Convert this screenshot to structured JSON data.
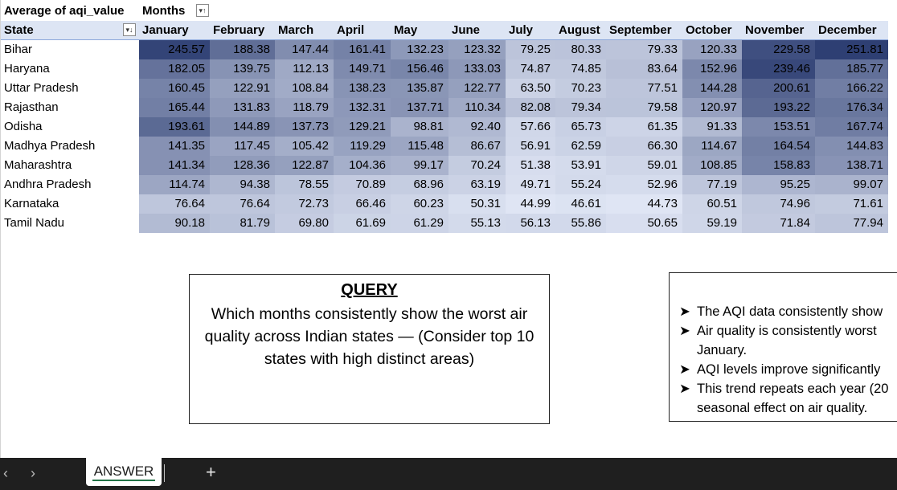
{
  "pivot": {
    "value_label": "Average of aqi_value",
    "columns_label": "Months",
    "rows_label": "State",
    "months": [
      "January",
      "February",
      "March",
      "April",
      "May",
      "June",
      "July",
      "August",
      "September",
      "October",
      "November",
      "December"
    ],
    "rows": [
      {
        "state": "Bihar",
        "values": [
          "245.57",
          "188.38",
          "147.44",
          "161.41",
          "132.23",
          "123.32",
          "79.25",
          "80.33",
          "79.33",
          "120.33",
          "229.58",
          "251.81"
        ]
      },
      {
        "state": "Haryana",
        "values": [
          "182.05",
          "139.75",
          "112.13",
          "149.71",
          "156.46",
          "133.03",
          "74.87",
          "74.85",
          "83.64",
          "152.96",
          "239.46",
          "185.77"
        ]
      },
      {
        "state": "Uttar Pradesh",
        "values": [
          "160.45",
          "122.91",
          "108.84",
          "138.23",
          "135.87",
          "122.77",
          "63.50",
          "70.23",
          "77.51",
          "144.28",
          "200.61",
          "166.22"
        ]
      },
      {
        "state": "Rajasthan",
        "values": [
          "165.44",
          "131.83",
          "118.79",
          "132.31",
          "137.71",
          "110.34",
          "82.08",
          "79.34",
          "79.58",
          "120.97",
          "193.22",
          "176.34"
        ]
      },
      {
        "state": "Odisha",
        "values": [
          "193.61",
          "144.89",
          "137.73",
          "129.21",
          "98.81",
          "92.40",
          "57.66",
          "65.73",
          "61.35",
          "91.33",
          "153.51",
          "167.74"
        ]
      },
      {
        "state": "Madhya Pradesh",
        "values": [
          "141.35",
          "117.45",
          "105.42",
          "119.29",
          "115.48",
          "86.67",
          "56.91",
          "62.59",
          "66.30",
          "114.67",
          "164.54",
          "144.83"
        ]
      },
      {
        "state": "Maharashtra",
        "values": [
          "141.34",
          "128.36",
          "122.87",
          "104.36",
          "99.17",
          "70.24",
          "51.38",
          "53.91",
          "59.01",
          "108.85",
          "158.83",
          "138.71"
        ]
      },
      {
        "state": "Andhra Pradesh",
        "values": [
          "114.74",
          "94.38",
          "78.55",
          "70.89",
          "68.96",
          "63.19",
          "49.71",
          "55.24",
          "52.96",
          "77.19",
          "95.25",
          "99.07"
        ]
      },
      {
        "state": "Karnataka",
        "values": [
          "76.64",
          "76.64",
          "72.73",
          "66.46",
          "60.23",
          "50.31",
          "44.99",
          "46.61",
          "44.73",
          "60.51",
          "74.96",
          "71.61"
        ]
      },
      {
        "state": "Tamil Nadu",
        "values": [
          "90.18",
          "81.79",
          "69.80",
          "61.69",
          "61.29",
          "55.13",
          "56.13",
          "55.86",
          "50.65",
          "59.19",
          "71.84",
          "77.94"
        ]
      }
    ],
    "heat_low_color": "#dfe5f4",
    "heat_high_color": "#2e3f73"
  },
  "query": {
    "title": "QUERY",
    "text": "Which months consistently show the worst air quality across Indian states — (Consider top 10 states with high distinct areas)"
  },
  "answer": {
    "bullets": [
      "The AQI data consistently show",
      "Air quality is consistently worst",
      "AQI levels improve significantly",
      "This trend repeats each year (20"
    ],
    "continuations": [
      "January.",
      "seasonal effect on air quality."
    ]
  },
  "tabs": {
    "active": "ANSWER",
    "prev_icon": "chevron-left-icon",
    "next_icon": "chevron-right-icon",
    "add_icon": "plus-icon"
  }
}
